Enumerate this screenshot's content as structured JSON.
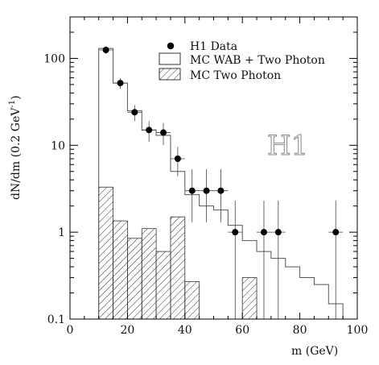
{
  "chart_data": {
    "type": "histogram",
    "xlabel": "m  (GeV)",
    "ylabel": "dN/dm  (0.2 GeV",
    "ylabel_sup": "-1",
    "ylabel_close": ")",
    "xlim": [
      0,
      100
    ],
    "ylim": [
      0.1,
      300
    ],
    "yscale": "log",
    "x_ticks": [
      0,
      20,
      40,
      60,
      80,
      100
    ],
    "x_tick_labels": [
      "0",
      "20",
      "40",
      "60",
      "80",
      "100"
    ],
    "y_ticks": [
      0.1,
      1,
      10,
      100
    ],
    "y_tick_labels": [
      "0.1",
      "1",
      "10",
      "100"
    ],
    "watermark": "H1",
    "legend": {
      "placement": "top-center",
      "entries": [
        {
          "label": "H1 Data",
          "kind": "marker"
        },
        {
          "label": "MC WAB + Two Photon",
          "kind": "box"
        },
        {
          "label": "MC Two Photon",
          "kind": "hatched"
        }
      ]
    },
    "series": [
      {
        "name": "H1 Data",
        "kind": "points",
        "x": [
          12.5,
          17.5,
          22.5,
          27.5,
          32.5,
          37.5,
          42.5,
          47.5,
          52.5,
          57.5,
          67.5,
          72.5,
          92.5
        ],
        "y": [
          125,
          52,
          24,
          15,
          14,
          7,
          3,
          3,
          3,
          1,
          1,
          1,
          1
        ],
        "yerr_low": [
          12,
          7,
          5,
          4,
          4,
          2.6,
          1.7,
          1.7,
          1.7,
          0.95,
          0.95,
          0.95,
          0.95
        ],
        "yerr_high": [
          12,
          7,
          5,
          4,
          4,
          2.6,
          2.3,
          2.3,
          2.3,
          1.3,
          1.3,
          1.3,
          1.3
        ],
        "xerr": 2.5
      },
      {
        "name": "MC WAB + Two Photon",
        "kind": "step",
        "bin_edges": [
          10,
          15,
          20,
          25,
          30,
          35,
          40,
          45,
          50,
          55,
          60,
          65,
          70,
          75,
          80,
          85,
          90,
          95
        ],
        "values": [
          130,
          52,
          25,
          15,
          13,
          5,
          2.7,
          2.0,
          1.8,
          1.2,
          0.8,
          0.6,
          0.5,
          0.4,
          0.3,
          0.25,
          0.15
        ]
      },
      {
        "name": "MC Two Photon",
        "kind": "hatched-step",
        "bin_edges": [
          10,
          15,
          20,
          25,
          30,
          35,
          40,
          45,
          50,
          55,
          60,
          65,
          70
        ],
        "values": [
          3.3,
          1.35,
          0.85,
          1.1,
          0.6,
          1.5,
          0.27,
          0,
          0,
          0,
          0.3,
          0
        ]
      }
    ]
  }
}
